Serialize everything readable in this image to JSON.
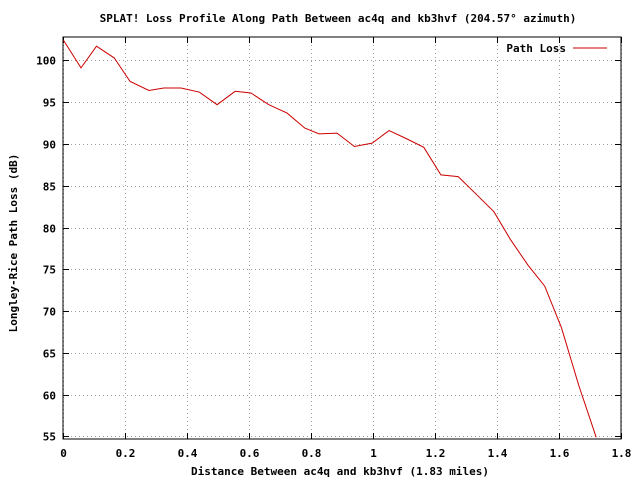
{
  "chart_data": {
    "type": "line",
    "title": "SPLAT! Loss Profile Along Path Between ac4q and kb3hvf (204.57° azimuth)",
    "xlabel": "Distance Between ac4q and kb3hvf (1.83 miles)",
    "ylabel": "Longley-Rice Path Loss (dB)",
    "xlim": [
      0,
      1.8
    ],
    "ylim": [
      54.7,
      102.8
    ],
    "xticks": [
      0,
      0.2,
      0.4,
      0.6,
      0.8,
      1.0,
      1.2,
      1.4,
      1.6,
      1.8
    ],
    "xtick_labels": [
      "0",
      "0.2",
      "0.4",
      "0.6",
      "0.8",
      "1",
      "1.2",
      "1.4",
      "1.6",
      "1.8"
    ],
    "yticks": [
      55,
      60,
      65,
      70,
      75,
      80,
      85,
      90,
      95,
      100
    ],
    "ytick_labels": [
      "55",
      "60",
      "65",
      "70",
      "75",
      "80",
      "85",
      "90",
      "95",
      "100"
    ],
    "grid": true,
    "legend_position": "top-right",
    "series": [
      {
        "name": "Path Loss",
        "color": "#cc0000",
        "x": [
          0,
          0.058,
          0.108,
          0.165,
          0.216,
          0.277,
          0.325,
          0.381,
          0.44,
          0.497,
          0.555,
          0.606,
          0.664,
          0.723,
          0.78,
          0.826,
          0.884,
          0.94,
          0.997,
          1.052,
          1.11,
          1.164,
          1.219,
          1.275,
          1.33,
          1.39,
          1.443,
          1.5,
          1.554,
          1.608,
          1.664,
          1.72
        ],
        "y": [
          102.5,
          99.1,
          101.7,
          100.3,
          97.5,
          96.4,
          96.7,
          96.7,
          96.2,
          94.7,
          96.3,
          96.1,
          94.7,
          93.7,
          91.9,
          91.2,
          91.3,
          89.7,
          90.1,
          91.6,
          90.6,
          89.6,
          86.3,
          86.1,
          84.1,
          81.9,
          78.6,
          75.5,
          73.0,
          68.0,
          61.1,
          54.9
        ]
      }
    ]
  }
}
